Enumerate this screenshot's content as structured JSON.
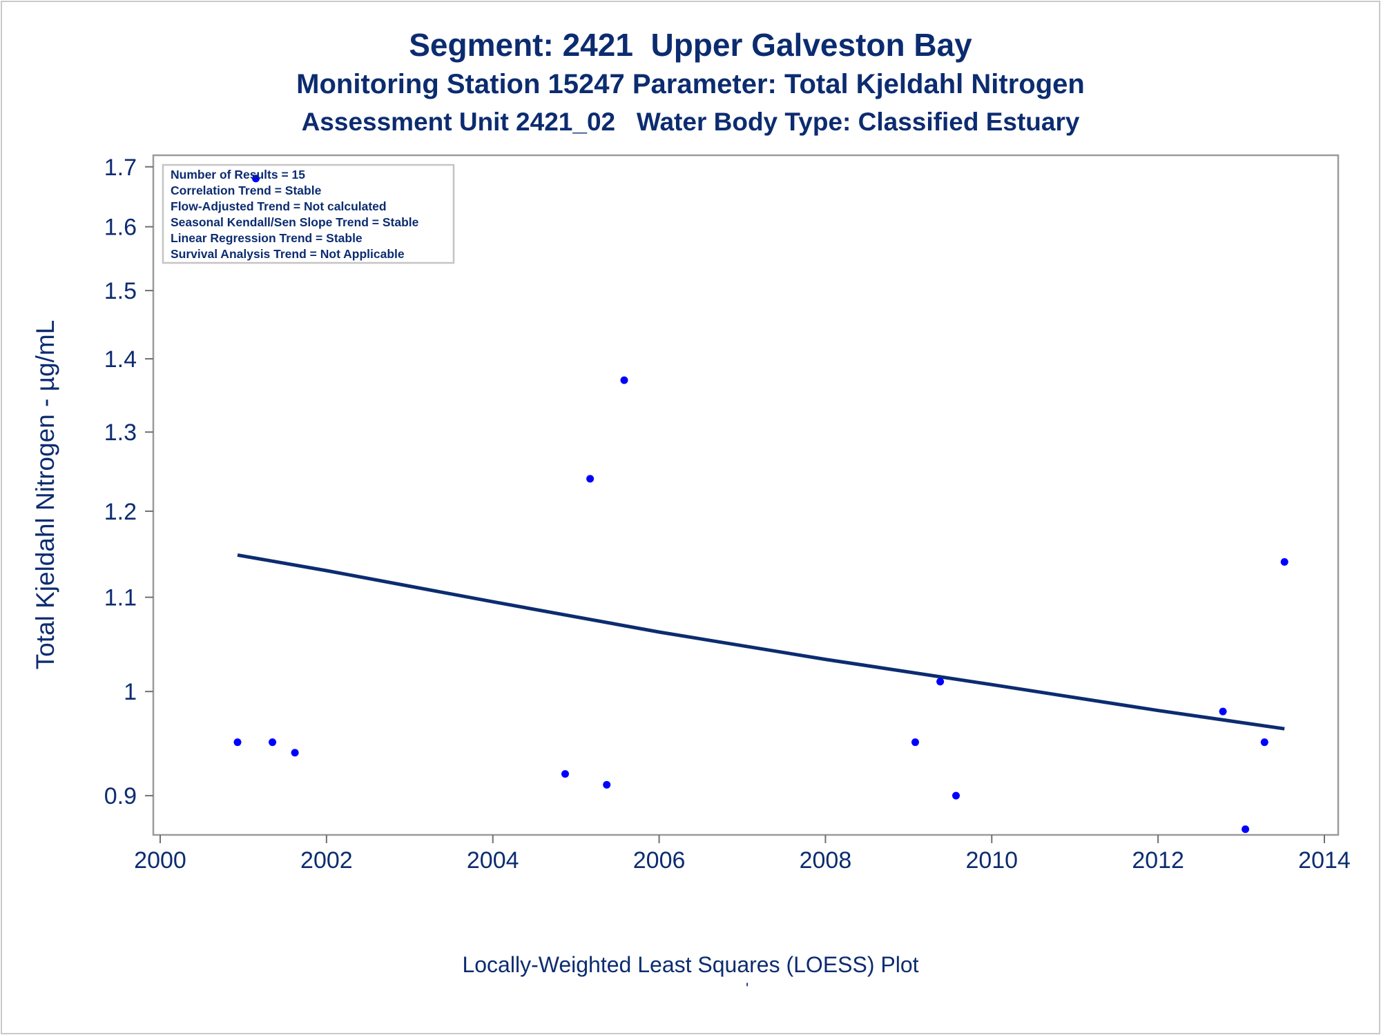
{
  "chart_data": {
    "type": "scatter",
    "title": "Segment: 2421  Upper Galveston Bay",
    "subtitles": [
      "Monitoring Station 15247 Parameter: Total Kjeldahl Nitrogen",
      "Assessment Unit 2421_02   Water Body Type: Classified Estuary"
    ],
    "xlabel": "Locally-Weighted Least Squares (LOESS) Plot",
    "footnote_mark": "'",
    "ylabel": "Total Kjeldahl Nitrogen -  µg/mL",
    "y_scale": "log",
    "xlim": [
      2000,
      2014
    ],
    "ylim": [
      0.865,
      1.72
    ],
    "x_ticks": [
      2000,
      2002,
      2004,
      2006,
      2008,
      2010,
      2012,
      2014
    ],
    "x_tick_labels": [
      "2000",
      "2002",
      "2004",
      "2006",
      "2008",
      "2010",
      "2012",
      "2014"
    ],
    "y_ticks": [
      0.9,
      1.0,
      1.1,
      1.2,
      1.3,
      1.4,
      1.5,
      1.6,
      1.7
    ],
    "y_tick_labels": [
      "0.9",
      "1",
      "1.1",
      "1.2",
      "1.3",
      "1.4",
      "1.5",
      "1.6",
      "1.7"
    ],
    "grid": false,
    "series": [
      {
        "type": "scatter",
        "color": "#0000ff",
        "x": [
          2000.93,
          2001.15,
          2001.35,
          2001.62,
          2004.87,
          2005.17,
          2005.37,
          2005.58,
          2009.08,
          2009.38,
          2009.57,
          2012.78,
          2013.05,
          2013.28,
          2013.52
        ],
        "y": [
          0.95,
          1.68,
          0.95,
          0.94,
          0.92,
          1.24,
          0.91,
          1.37,
          0.95,
          1.01,
          0.9,
          0.98,
          0.87,
          0.95,
          1.14
        ]
      },
      {
        "type": "line",
        "color": "#0c2c70",
        "x": [
          2000.93,
          2002,
          2004,
          2006,
          2008,
          2010,
          2012,
          2013.52
        ],
        "y": [
          1.148,
          1.13,
          1.095,
          1.062,
          1.033,
          1.007,
          0.981,
          0.963
        ]
      }
    ],
    "stats_box": [
      "Number of Results = 15",
      "Correlation Trend = Stable",
      "Flow-Adjusted Trend = Not calculated",
      "Seasonal Kendall/Sen Slope Trend = Stable",
      "Linear Regression Trend = Stable",
      "Survival Analysis Trend = Not Applicable"
    ],
    "stats_box_position": "top-left"
  }
}
